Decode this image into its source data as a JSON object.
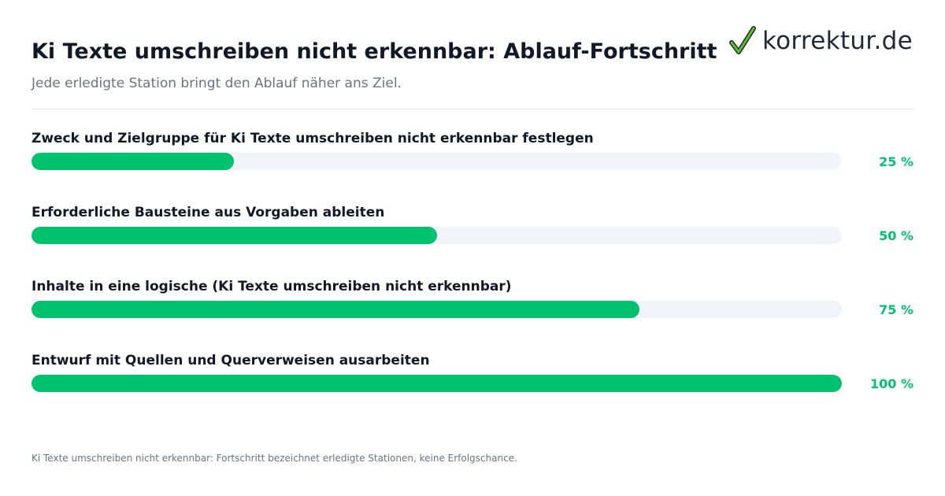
{
  "header": {
    "title": "Ki Texte umschreiben nicht erkennbar: Ablauf-Fortschritt",
    "subtitle": "Jede erledigte Station bringt den Ablauf näher ans Ziel."
  },
  "logo": {
    "icon": "checkmark-icon",
    "text": "korrektur.de",
    "check_color": "#2e7d1a"
  },
  "colors": {
    "bar_fill": "#00c16e",
    "bar_track": "#f0f4f8",
    "percent_text": "#00c16e"
  },
  "chart_data": {
    "type": "bar",
    "orientation": "horizontal",
    "categories": [
      "Zweck und Zielgruppe für Ki Texte umschreiben nicht erkennbar festlegen",
      "Erforderliche Bausteine aus Vorgaben ableiten",
      "Inhalte in eine logische (Ki Texte umschreiben nicht erkennbar)",
      "Entwurf mit Quellen und Querverweisen ausarbeiten"
    ],
    "values": [
      25,
      50,
      75,
      100
    ],
    "value_labels": [
      "25 %",
      "50 %",
      "75 %",
      "100 %"
    ],
    "xlim": [
      0,
      100
    ],
    "grid": false
  },
  "footnote": "Ki Texte umschreiben nicht erkennbar: Fortschritt bezeichnet erledigte Stationen, keine Erfolgschance."
}
